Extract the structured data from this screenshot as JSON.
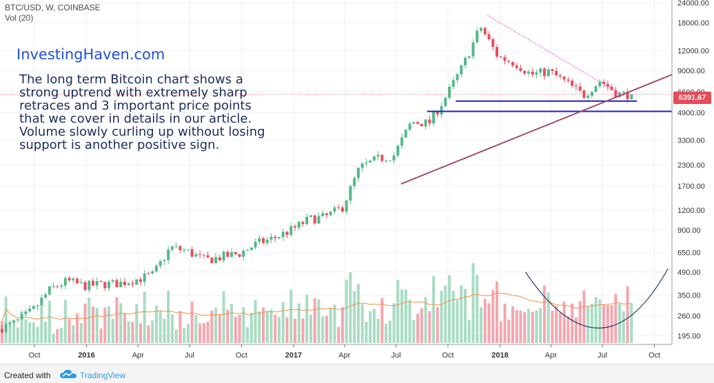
{
  "header": {
    "ticker": "BTC/USD, W, COINBASE",
    "volume_label": "Vol (20)"
  },
  "annotation": {
    "brand": "InvestingHaven.com",
    "lines": [
      "The long term Bitcoin chart shows a",
      "strong uptrend with extremely sharp",
      "retraces and 3 important price points",
      "that we cover in details in our article.",
      "Volume slowly curling up without losing",
      "support is another positive sign."
    ]
  },
  "footer": {
    "created_with": "Created with",
    "brand": "TradingView"
  },
  "colors": {
    "up": "#53b987",
    "down": "#eb4d5c",
    "up_vol": "#a9dcc3",
    "down_vol": "#f5a6ae",
    "support": "#1f1fd6",
    "trend": "#a14a6d",
    "resistance": "#e040e0",
    "ma": "#f0904a",
    "curve": "#1c3766"
  },
  "chart_data": {
    "type": "candlestick",
    "symbol": "BTC/USD",
    "interval": "W",
    "exchange": "COINBASE",
    "scale": "log",
    "ylim": [
      172,
      25000
    ],
    "y_ticks": [
      24000,
      18000,
      12000,
      9000,
      6600,
      4900,
      3300,
      2300,
      1700,
      1200,
      900,
      650,
      490,
      350,
      260,
      195
    ],
    "y_tick_labels": [
      "24000.00",
      "18000.00",
      "12000.00",
      "9000.00",
      "6600.00",
      "4900.00",
      "3300.00",
      "2300.00",
      "1700.00",
      "1200.00",
      "900.00",
      "650.00",
      "490.00",
      "350.00",
      "260.00",
      "195.00"
    ],
    "x_ticks": [
      "Oct",
      "2016",
      "Apr",
      "Jul",
      "Oct",
      "2017",
      "Apr",
      "Jul",
      "Oct",
      "2018",
      "Apr",
      "Jul",
      "Oct"
    ],
    "x_start": "2015-08-01",
    "x_end": "2018-11-01",
    "last_price": "6391.67",
    "grid": true,
    "price_keypoints": [
      [
        "2015-08-01",
        215
      ],
      [
        "2015-09-01",
        235
      ],
      [
        "2015-10-01",
        280
      ],
      [
        "2015-11-01",
        380
      ],
      [
        "2015-12-01",
        430
      ],
      [
        "2016-01-01",
        400
      ],
      [
        "2016-02-01",
        410
      ],
      [
        "2016-03-01",
        415
      ],
      [
        "2016-04-01",
        440
      ],
      [
        "2016-05-01",
        470
      ],
      [
        "2016-06-01",
        700
      ],
      [
        "2016-07-01",
        660
      ],
      [
        "2016-08-01",
        580
      ],
      [
        "2016-09-01",
        610
      ],
      [
        "2016-10-01",
        640
      ],
      [
        "2016-11-01",
        740
      ],
      [
        "2016-12-01",
        800
      ],
      [
        "2017-01-01",
        900
      ],
      [
        "2017-02-01",
        1050
      ],
      [
        "2017-03-01",
        1080
      ],
      [
        "2017-04-01",
        1250
      ],
      [
        "2017-05-01",
        2200
      ],
      [
        "2017-06-01",
        2500
      ],
      [
        "2017-07-01",
        2650
      ],
      [
        "2017-08-01",
        4300
      ],
      [
        "2017-09-01",
        4200
      ],
      [
        "2017-10-01",
        6200
      ],
      [
        "2017-11-01",
        9800
      ],
      [
        "2017-12-01",
        17000
      ],
      [
        "2018-01-01",
        11000
      ],
      [
        "2018-02-01",
        10000
      ],
      [
        "2018-03-01",
        8500
      ],
      [
        "2018-04-01",
        8900
      ],
      [
        "2018-05-01",
        7600
      ],
      [
        "2018-06-01",
        6300
      ],
      [
        "2018-07-01",
        7800
      ],
      [
        "2018-08-01",
        6400
      ],
      [
        "2018-08-20",
        6391.67
      ]
    ],
    "support_lines": [
      {
        "from": "2017-10-15",
        "to": "2018-08-31",
        "price": 5800
      },
      {
        "from": "2017-08-25",
        "to": "2018-11-01",
        "price": 5000
      }
    ],
    "trend_line": {
      "from": [
        "2017-07-10",
        1750
      ],
      "to": [
        "2018-11-01",
        8500
      ]
    },
    "resistance_line": {
      "from": [
        "2017-12-10",
        20000
      ],
      "to": [
        "2018-08-10",
        6200
      ]
    },
    "volume_curve": {
      "from": "2018-02-15",
      "bottom": "2018-07-01",
      "to": "2018-10-25"
    }
  }
}
